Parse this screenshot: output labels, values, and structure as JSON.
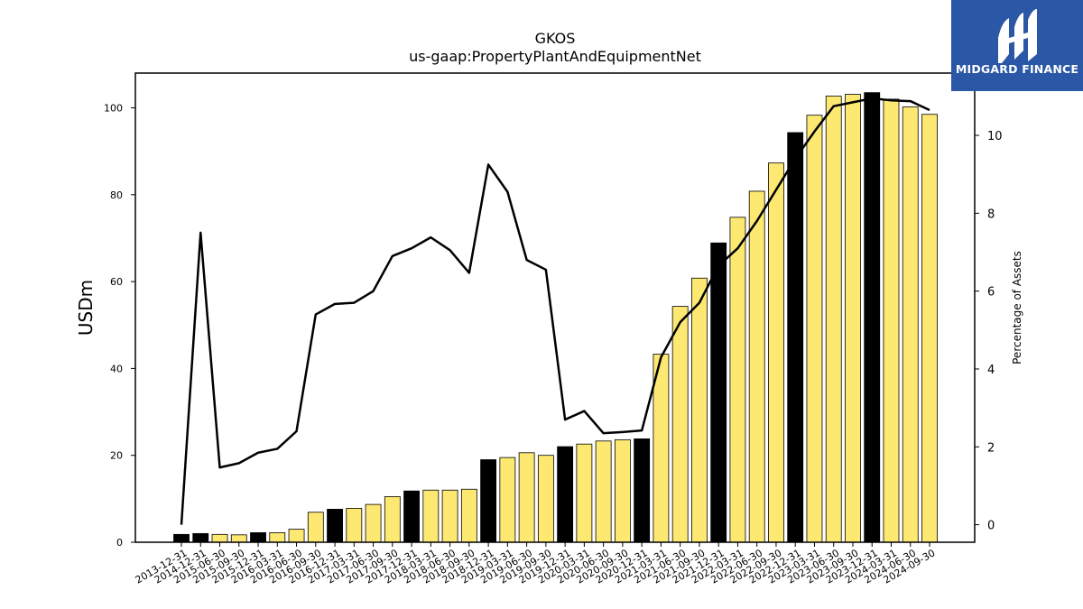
{
  "chart_data": {
    "type": "bar",
    "title": "GKOS",
    "subtitle": "us-gaap:PropertyPlantAndEquipmentNet",
    "ylabel": "USDm",
    "y2label": "Percentage of Assets",
    "ylim": [
      0,
      108
    ],
    "y2lim": [
      -0.45,
      11.6
    ],
    "yticks": [
      0,
      20,
      40,
      60,
      80,
      100
    ],
    "y2ticks": [
      0,
      2,
      4,
      6,
      8,
      10
    ],
    "grid": false,
    "colors": {
      "bar_fill": "#fde972",
      "bar_highlight": "#000000",
      "bar_edge": "#000000",
      "line": "#000000"
    },
    "categories": [
      "2013-12-31",
      "2014-12-31",
      "2015-06-30",
      "2015-09-30",
      "2015-12-31",
      "2016-03-31",
      "2016-06-30",
      "2016-09-30",
      "2016-12-31",
      "2017-03-31",
      "2017-06-30",
      "2017-09-30",
      "2017-12-31",
      "2018-03-31",
      "2018-06-30",
      "2018-09-30",
      "2018-12-31",
      "2019-03-31",
      "2019-06-30",
      "2019-09-30",
      "2019-12-31",
      "2020-03-31",
      "2020-06-30",
      "2020-09-30",
      "2020-12-31",
      "2021-03-31",
      "2021-06-30",
      "2021-09-30",
      "2021-12-31",
      "2022-03-31",
      "2022-06-30",
      "2022-09-30",
      "2022-12-31",
      "2023-03-31",
      "2023-06-30",
      "2023-09-30",
      "2023-12-31",
      "2024-03-31",
      "2024-06-30",
      "2024-09-30"
    ],
    "series": [
      {
        "kind": "bar",
        "axis": "left",
        "values": [
          1.8,
          2.0,
          1.8,
          1.7,
          2.2,
          2.2,
          3.0,
          6.9,
          7.6,
          7.8,
          8.7,
          10.5,
          11.8,
          12.0,
          12.0,
          12.2,
          19.0,
          19.5,
          20.6,
          20.0,
          22.0,
          22.6,
          23.3,
          23.6,
          23.8,
          43.3,
          54.3,
          60.8,
          68.9,
          74.8,
          80.8,
          87.3,
          94.3,
          98.3,
          102.7,
          103.1,
          103.5,
          102.0,
          100.2,
          98.5
        ],
        "highlight": [
          true,
          true,
          false,
          false,
          true,
          false,
          false,
          false,
          true,
          false,
          false,
          false,
          true,
          false,
          false,
          false,
          true,
          false,
          false,
          false,
          true,
          false,
          false,
          false,
          true,
          false,
          false,
          false,
          true,
          false,
          false,
          false,
          true,
          false,
          false,
          false,
          true,
          false,
          false,
          false
        ]
      },
      {
        "kind": "line",
        "axis": "right",
        "values": [
          0.0,
          7.5,
          1.47,
          1.58,
          1.85,
          1.95,
          2.4,
          5.4,
          5.67,
          5.7,
          6.0,
          6.9,
          7.1,
          7.38,
          7.05,
          6.47,
          9.25,
          8.55,
          6.8,
          6.55,
          2.7,
          2.92,
          2.35,
          2.38,
          2.42,
          4.3,
          5.2,
          5.7,
          6.65,
          7.1,
          7.8,
          8.6,
          9.4,
          10.1,
          10.75,
          10.85,
          10.95,
          10.9,
          10.88,
          10.65
        ]
      }
    ]
  },
  "logo": {
    "text": "MIDGARD FINANCE",
    "color": "#2a57a6"
  }
}
